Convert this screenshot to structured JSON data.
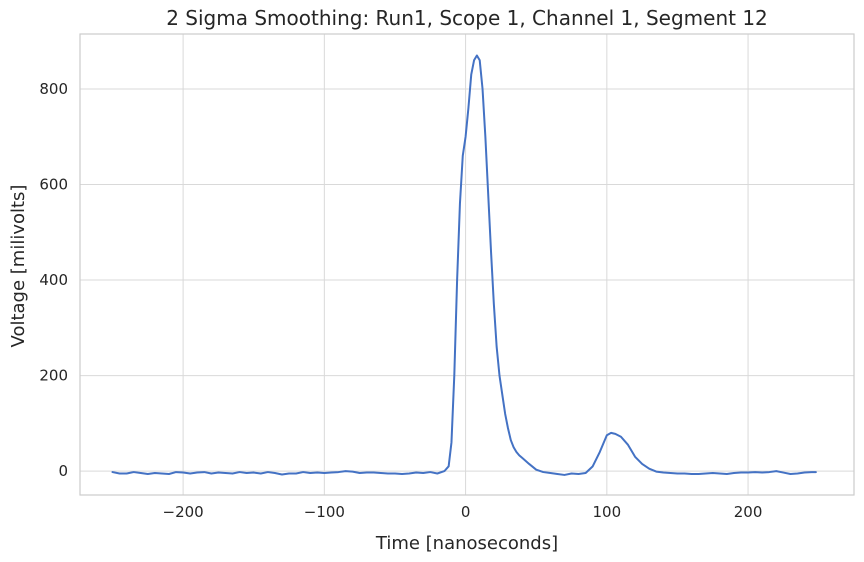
{
  "chart_data": {
    "type": "line",
    "title": "2 Sigma Smoothing: Run1, Scope 1, Channel 1, Segment 12",
    "xlabel": "Time [nanoseconds]",
    "ylabel": "Voltage [milivolts]",
    "xlim": [
      -273,
      275
    ],
    "ylim": [
      -50,
      915
    ],
    "xticks": [
      -200,
      -100,
      0,
      100,
      200
    ],
    "xtick_labels": [
      "−200",
      "−100",
      "0",
      "100",
      "200"
    ],
    "yticks": [
      0,
      200,
      400,
      600,
      800
    ],
    "ytick_labels": [
      "0",
      "200",
      "400",
      "600",
      "800"
    ],
    "grid": true,
    "color": "#4472c4",
    "series": [
      {
        "x": [
          -250,
          -245,
          -240,
          -235,
          -230,
          -225,
          -220,
          -215,
          -210,
          -205,
          -200,
          -195,
          -190,
          -185,
          -180,
          -175,
          -170,
          -165,
          -160,
          -155,
          -150,
          -145,
          -140,
          -135,
          -130,
          -125,
          -120,
          -115,
          -110,
          -105,
          -100,
          -95,
          -90,
          -85,
          -80,
          -75,
          -70,
          -65,
          -60,
          -55,
          -50,
          -45,
          -40,
          -35,
          -30,
          -25,
          -20,
          -15,
          -12,
          -10,
          -8,
          -6,
          -4,
          -2,
          0,
          2,
          4,
          6,
          8,
          10,
          12,
          14,
          16,
          18,
          20,
          22,
          24,
          26,
          28,
          30,
          32,
          34,
          36,
          38,
          40,
          45,
          50,
          55,
          60,
          65,
          70,
          75,
          80,
          85,
          90,
          95,
          100,
          103,
          106,
          110,
          115,
          120,
          125,
          130,
          135,
          140,
          145,
          150,
          155,
          160,
          165,
          170,
          175,
          180,
          185,
          190,
          195,
          200,
          205,
          210,
          215,
          220,
          225,
          230,
          235,
          240,
          245,
          248
        ],
        "y": [
          -2,
          -5,
          -5,
          -2,
          -4,
          -6,
          -4,
          -5,
          -6,
          -2,
          -3,
          -5,
          -3,
          -2,
          -5,
          -3,
          -4,
          -5,
          -2,
          -4,
          -3,
          -5,
          -2,
          -4,
          -7,
          -5,
          -5,
          -2,
          -4,
          -3,
          -4,
          -3,
          -2,
          0,
          -1,
          -4,
          -3,
          -3,
          -4,
          -5,
          -5,
          -6,
          -5,
          -3,
          -4,
          -2,
          -5,
          0,
          10,
          60,
          200,
          400,
          560,
          660,
          700,
          760,
          830,
          860,
          870,
          860,
          800,
          700,
          580,
          460,
          350,
          260,
          200,
          160,
          120,
          90,
          65,
          50,
          40,
          33,
          28,
          15,
          3,
          -2,
          -4,
          -6,
          -8,
          -5,
          -6,
          -4,
          10,
          40,
          75,
          80,
          78,
          72,
          55,
          30,
          15,
          5,
          -1,
          -3,
          -4,
          -5,
          -5,
          -6,
          -6,
          -5,
          -4,
          -5,
          -6,
          -4,
          -3,
          -3,
          -2,
          -3,
          -2,
          0,
          -3,
          -6,
          -5,
          -3,
          -2,
          -2
        ]
      }
    ]
  }
}
